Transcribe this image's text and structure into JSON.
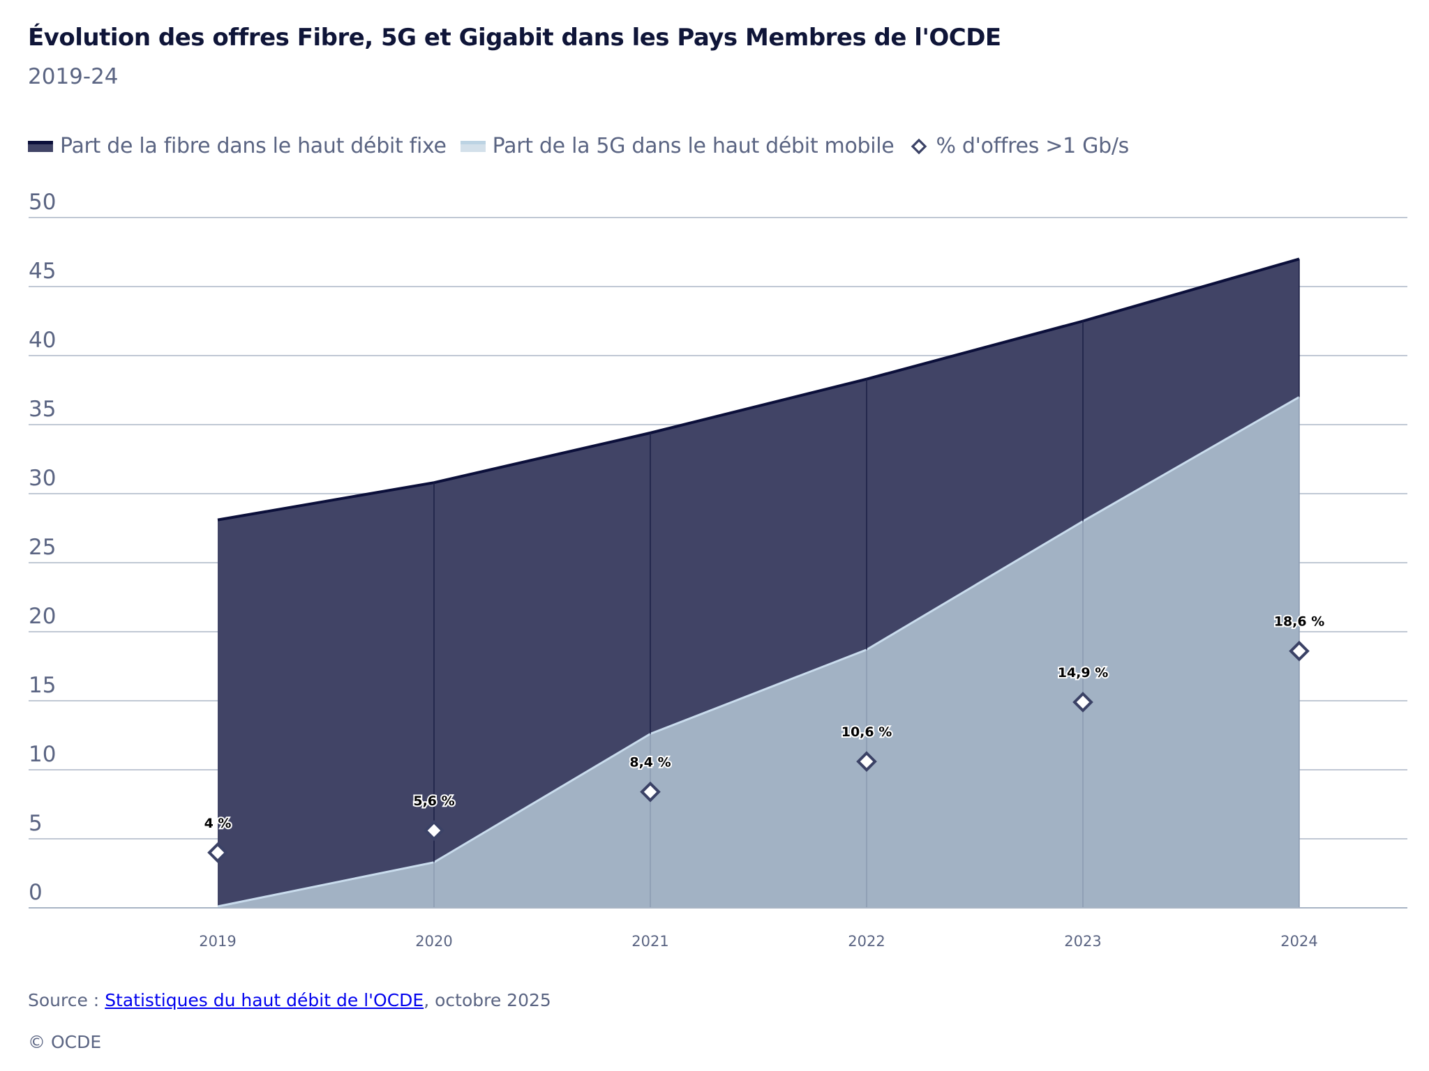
{
  "chart_data": {
    "type": "area",
    "title": "Évolution des offres Fibre, 5G et Gigabit dans les Pays Membres de l'OCDE",
    "subtitle": "2019-24",
    "categories": [
      "2019",
      "2020",
      "2021",
      "2022",
      "2023",
      "2024"
    ],
    "ylim": [
      0,
      50
    ],
    "yticks": [
      "0",
      "5",
      "10",
      "15",
      "20",
      "25",
      "30",
      "35",
      "40",
      "45",
      "50"
    ],
    "grid": true,
    "legend_position": "top-left",
    "series": [
      {
        "name": "Part de la fibre dans le haut débit fixe",
        "type": "area",
        "color": "#414466",
        "line_color": "#0b0f3a",
        "values": [
          28.1,
          30.8,
          34.4,
          38.3,
          42.5,
          47.0
        ]
      },
      {
        "name": "Part de la 5G dans le haut débit mobile",
        "type": "area",
        "color": "#a2b2c4",
        "line_color": "#c9dced",
        "values": [
          0.1,
          3.3,
          12.6,
          18.7,
          28.0,
          37.0
        ]
      },
      {
        "name": "% d'offres >1 Gb/s",
        "type": "scatter",
        "marker": "diamond",
        "color": "#3b4266",
        "values": [
          4,
          5.6,
          8.4,
          10.6,
          14.9,
          18.6
        ],
        "labels": [
          "4 %",
          "5,6 %",
          "8,4 %",
          "10,6 %",
          "14,9 %",
          "18,6 %"
        ]
      }
    ]
  },
  "source": {
    "prefix": "Source : ",
    "link": "Statistiques du haut débit de l'OCDE",
    "suffix": ", octobre 2025"
  },
  "copyright": "© OCDE"
}
